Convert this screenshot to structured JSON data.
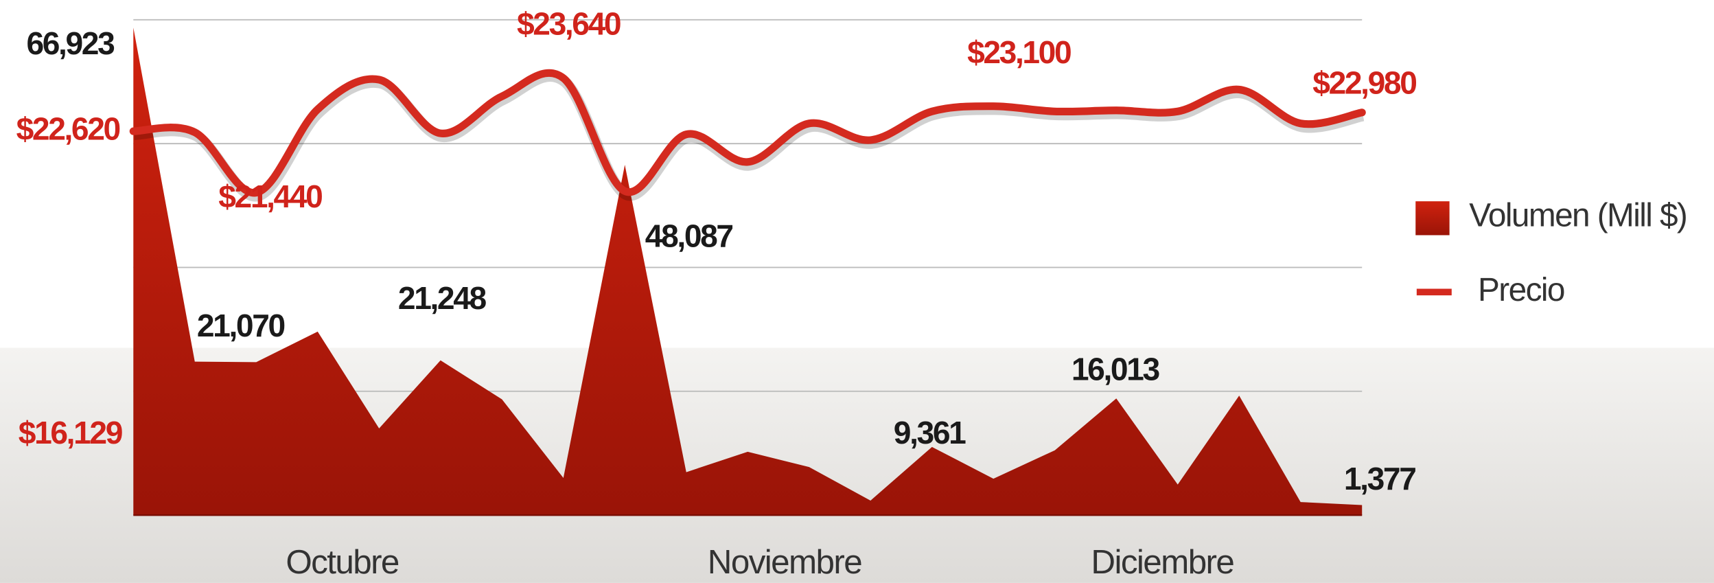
{
  "chart_data": {
    "type": "area-line",
    "categories": [
      null,
      null,
      null,
      null,
      null,
      null,
      null,
      null,
      null,
      null,
      null,
      null,
      null,
      null,
      null,
      null,
      null,
      null,
      null,
      null,
      null
    ],
    "months": [
      "Octubre",
      "Noviembre",
      "Diciembre"
    ],
    "annotations": [
      "$16,129"
    ],
    "ylim": [
      0,
      68000
    ],
    "yticks": [
      0,
      17000,
      34000,
      51000,
      68000
    ],
    "y2lim": [
      15250,
      24760
    ],
    "grid": true,
    "legend": "right",
    "series": [
      {
        "name": "Volumen (Mill $)",
        "color": "#b81a0c",
        "type": "area",
        "values": [
          66923,
          21070,
          21000,
          25200,
          11900,
          21248,
          15900,
          5100,
          48087,
          5900,
          8700,
          6600,
          2000,
          9361,
          5000,
          8900,
          16013,
          4200,
          16400,
          1800,
          1377
        ],
        "value_labels": [
          "66,923",
          "21,070",
          null,
          null,
          null,
          "21,248",
          null,
          null,
          "48,087",
          null,
          null,
          null,
          null,
          "9,361",
          null,
          null,
          "16,013",
          null,
          null,
          null,
          "1,377"
        ]
      },
      {
        "name": "Precio",
        "color": "#d42a1f",
        "type": "line",
        "axis": "y2",
        "values": [
          22620,
          22600,
          21440,
          23040,
          23610,
          22580,
          23290,
          23640,
          21470,
          22560,
          22030,
          22770,
          22450,
          23000,
          23100,
          23000,
          23020,
          23000,
          23420,
          22770,
          22980
        ],
        "value_labels": [
          "$22,620",
          null,
          "$21,440",
          null,
          null,
          null,
          null,
          "$23,640",
          null,
          null,
          null,
          null,
          null,
          null,
          "$23,100",
          null,
          null,
          null,
          null,
          null,
          "$22,980"
        ]
      }
    ]
  }
}
